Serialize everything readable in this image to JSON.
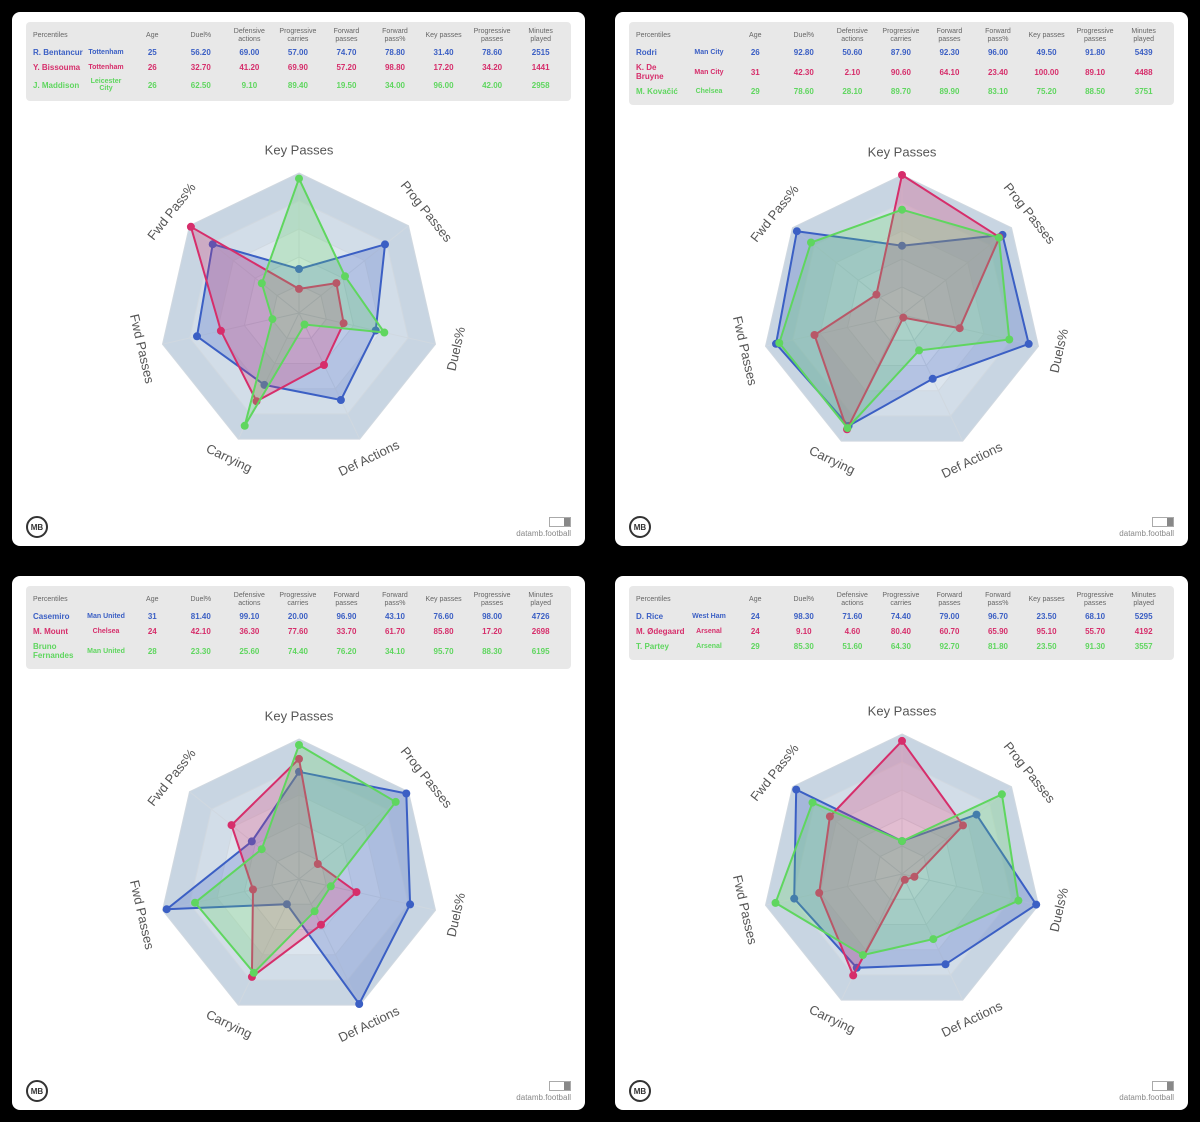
{
  "page_bg": "#000000",
  "panel_bg": "#ffffff",
  "table_bg": "#e8e8e8",
  "player_colors": [
    "#3b5fc4",
    "#d62e6b",
    "#5fd65f"
  ],
  "credit_text": "datamb.football",
  "logo_text": "MB",
  "columns": [
    "Percentiles",
    "",
    "Age",
    "Duel%",
    "Defensive actions",
    "Progressive carries",
    "Forward passes",
    "Forward pass%",
    "Key passes",
    "Progressive passes",
    "Minutes played"
  ],
  "radar": {
    "axes": [
      "Key Passes",
      "Prog Passes",
      "Duels%",
      "Def Actions",
      "Carrying",
      "Fwd Passes",
      "Fwd Pass%"
    ],
    "rings": [
      20,
      40,
      60,
      80,
      100
    ],
    "ring_colors": [
      "#f0f4f8",
      "#e6edf3",
      "#dce5ee",
      "#d2dde8",
      "#c8d5e2"
    ],
    "grid_stroke": "#d0d8e0",
    "axis_label_color": "#555555",
    "marker_radius": 4,
    "line_width": 2,
    "fill_opacity": 0.25
  },
  "panels": [
    {
      "players": [
        {
          "name": "R. Bentancur",
          "team": "Tottenham",
          "age": 25,
          "vals": [
            56.2,
            69.0,
            57.0,
            74.7,
            78.8,
            31.4,
            78.6
          ],
          "minutes": 2515,
          "radar": [
            31.4,
            78.6,
            56.2,
            69.0,
            57.0,
            74.7,
            78.8
          ]
        },
        {
          "name": "Y. Bissouma",
          "team": "Tottenham",
          "age": 26,
          "vals": [
            32.7,
            41.2,
            69.9,
            57.2,
            98.8,
            17.2,
            34.2
          ],
          "minutes": 1441,
          "radar": [
            17.2,
            34.2,
            32.7,
            41.2,
            69.9,
            57.2,
            98.8
          ]
        },
        {
          "name": "J. Maddison",
          "team": "Leicester City",
          "age": 26,
          "vals": [
            62.5,
            9.1,
            89.4,
            19.5,
            34.0,
            96.0,
            42.0
          ],
          "minutes": 2958,
          "radar": [
            96.0,
            42.0,
            62.5,
            9.1,
            89.4,
            19.5,
            34.0
          ]
        }
      ]
    },
    {
      "players": [
        {
          "name": "Rodri",
          "team": "Man City",
          "age": 26,
          "vals": [
            92.8,
            50.6,
            87.9,
            92.3,
            96.0,
            49.5,
            91.8
          ],
          "minutes": 5439,
          "radar": [
            49.5,
            91.8,
            92.8,
            50.6,
            87.9,
            92.3,
            96.0
          ]
        },
        {
          "name": "K. De Bruyne",
          "team": "Man City",
          "age": 31,
          "vals": [
            42.3,
            2.1,
            90.6,
            64.1,
            23.4,
            100.0,
            89.1
          ],
          "minutes": 4488,
          "radar": [
            100.0,
            89.1,
            42.3,
            2.1,
            90.6,
            64.1,
            23.4
          ]
        },
        {
          "name": "M. Kovačić",
          "team": "Chelsea",
          "age": 29,
          "vals": [
            78.6,
            28.1,
            89.7,
            89.9,
            83.1,
            75.2,
            88.5
          ],
          "minutes": 3751,
          "radar": [
            75.2,
            88.5,
            78.6,
            28.1,
            89.7,
            89.9,
            83.1
          ]
        }
      ]
    },
    {
      "players": [
        {
          "name": "Casemiro",
          "team": "Man United",
          "age": 31,
          "vals": [
            81.4,
            99.1,
            20.0,
            96.9,
            43.1,
            76.6,
            98.0
          ],
          "minutes": 4726,
          "radar": [
            76.6,
            98.0,
            81.4,
            99.1,
            20.0,
            96.9,
            43.1
          ]
        },
        {
          "name": "M. Mount",
          "team": "Chelsea",
          "age": 24,
          "vals": [
            42.1,
            36.3,
            77.6,
            33.7,
            61.7,
            85.8,
            17.2
          ],
          "minutes": 2698,
          "radar": [
            85.8,
            17.2,
            42.1,
            36.3,
            77.6,
            33.7,
            61.7
          ]
        },
        {
          "name": "Bruno Fernandes",
          "team": "Man United",
          "age": 28,
          "vals": [
            23.3,
            25.6,
            74.4,
            76.2,
            34.1,
            95.7,
            88.3
          ],
          "minutes": 6195,
          "radar": [
            95.7,
            88.3,
            23.3,
            25.6,
            74.4,
            76.2,
            34.1
          ]
        }
      ]
    },
    {
      "players": [
        {
          "name": "D. Rice",
          "team": "West Ham",
          "age": 24,
          "vals": [
            98.3,
            71.6,
            74.4,
            79.0,
            96.7,
            23.5,
            68.1
          ],
          "minutes": 5295,
          "radar": [
            23.5,
            68.1,
            98.3,
            71.6,
            74.4,
            79.0,
            96.7
          ]
        },
        {
          "name": "M. Ødegaard",
          "team": "Arsenal",
          "age": 24,
          "vals": [
            9.1,
            4.6,
            80.4,
            60.7,
            65.9,
            95.1,
            55.7
          ],
          "minutes": 4192,
          "radar": [
            95.1,
            55.7,
            9.1,
            4.6,
            80.4,
            60.7,
            65.9
          ]
        },
        {
          "name": "T. Partey",
          "team": "Arsenal",
          "age": 29,
          "vals": [
            85.3,
            51.6,
            64.3,
            92.7,
            81.8,
            23.5,
            91.3
          ],
          "minutes": 3557,
          "radar": [
            23.5,
            91.3,
            85.3,
            51.6,
            64.3,
            92.7,
            81.8
          ]
        }
      ]
    }
  ]
}
